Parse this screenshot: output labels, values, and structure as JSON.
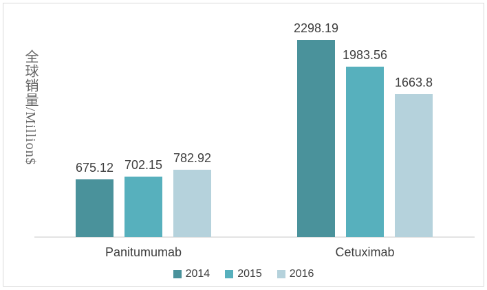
{
  "chart_data": {
    "type": "bar",
    "title": "",
    "ylabel": "全球销量/Million$",
    "xlabel": "",
    "categories": [
      "Panitumumab",
      "Cetuximab"
    ],
    "series": [
      {
        "name": "2014",
        "color": "#4A929B",
        "values": [
          675.12,
          2298.19
        ],
        "labels": [
          "675.12",
          "2298.19"
        ]
      },
      {
        "name": "2015",
        "color": "#57B0BD",
        "values": [
          702.15,
          1983.56
        ],
        "labels": [
          "702.15",
          "1983.56"
        ]
      },
      {
        "name": "2016",
        "color": "#B5D2DC",
        "values": [
          782.92,
          1663.8
        ],
        "labels": [
          "782.92",
          "1663.8"
        ]
      }
    ],
    "ylim": [
      0,
      2400
    ],
    "grid": false,
    "data_labels": true,
    "legend_position": "bottom",
    "axis_line_color": "#e3e3e3",
    "text_color": "#3f3f3f"
  }
}
